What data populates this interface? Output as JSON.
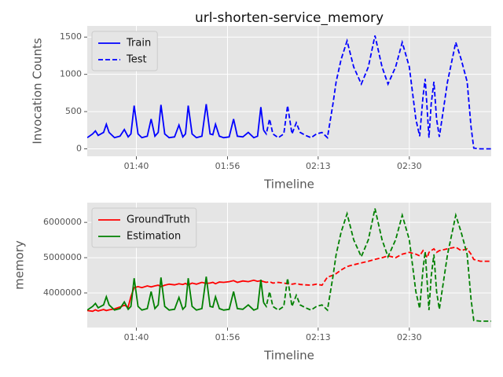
{
  "chart_data": [
    {
      "type": "line",
      "title": "url-shorten-service_memory",
      "xlabel": "Timeline",
      "ylabel": "Invocation Counts",
      "x": [
        91,
        92,
        92.5,
        93,
        94,
        94.5,
        95,
        96,
        97,
        97.8,
        98.5,
        99,
        99.6,
        100.3,
        101,
        102,
        102.7,
        103.4,
        104,
        104.5,
        105.2,
        106,
        107,
        107.8,
        108.5,
        109,
        109.5,
        110.2,
        111,
        112,
        112.8,
        113.5,
        114,
        114.5,
        115.2,
        116,
        117,
        117.8,
        118.5,
        119.5,
        120.5,
        121.5,
        122.2,
        122.8,
        123.3,
        123.8,
        124.4,
        125,
        126,
        127,
        127.7,
        128.5,
        129.3,
        130,
        131,
        132,
        133,
        134,
        135,
        136,
        136.6,
        137.5,
        138.6,
        139.8,
        141.2,
        142.5,
        143.7,
        145,
        146.1,
        147.5,
        148.7,
        150,
        151.2,
        151.9,
        152.5,
        152.9,
        153.3,
        153.6,
        154,
        154.5,
        155,
        155.5,
        157,
        158.5,
        159.5,
        160.6,
        161.3,
        161.8,
        163,
        165
      ],
      "xlim": [
        91,
        165
      ],
      "xticks": [
        {
          "value": 100,
          "label": "01:40"
        },
        {
          "value": 116.7,
          "label": "01:56"
        },
        {
          "value": 133.3,
          "label": "02:13"
        },
        {
          "value": 150,
          "label": "02:30"
        }
      ],
      "ylim": [
        -100,
        1650
      ],
      "yticks": [
        0,
        500,
        1000,
        1500
      ],
      "grid": true,
      "legend": "upper left",
      "series": [
        {
          "name": "Train",
          "color": "#0000ff",
          "style": "solid",
          "values": [
            150,
            200,
            240,
            180,
            220,
            330,
            220,
            150,
            170,
            260,
            160,
            200,
            580,
            200,
            150,
            170,
            400,
            170,
            220,
            590,
            200,
            150,
            160,
            320,
            160,
            200,
            580,
            200,
            150,
            170,
            600,
            200,
            190,
            330,
            170,
            150,
            160,
            400,
            170,
            160,
            220,
            150,
            170,
            560,
            250,
            null,
            null,
            null,
            null,
            null,
            null,
            null,
            null,
            null,
            null,
            null,
            null,
            null,
            null,
            null,
            null,
            null,
            null,
            null,
            null,
            null,
            null,
            null,
            null,
            null,
            null,
            null,
            null,
            null,
            null,
            null,
            null,
            null,
            null,
            null,
            null,
            null,
            null,
            null,
            null,
            null,
            null,
            null,
            null,
            null
          ]
        },
        {
          "name": "Test",
          "color": "#0000ff",
          "style": "dashed",
          "values": [
            null,
            null,
            null,
            null,
            null,
            null,
            null,
            null,
            null,
            null,
            null,
            null,
            null,
            null,
            null,
            null,
            null,
            null,
            null,
            null,
            null,
            null,
            null,
            null,
            null,
            null,
            null,
            null,
            null,
            null,
            null,
            null,
            null,
            null,
            null,
            null,
            null,
            null,
            null,
            null,
            null,
            null,
            null,
            null,
            250,
            200,
            400,
            200,
            150,
            200,
            580,
            200,
            350,
            220,
            180,
            150,
            200,
            220,
            150,
            600,
            900,
            1200,
            1450,
            1100,
            870,
            1100,
            1520,
            1100,
            870,
            1100,
            1430,
            1100,
            400,
            170,
            700,
            940,
            500,
            150,
            600,
            900,
            400,
            160,
            900,
            1430,
            1200,
            900,
            300,
            10,
            0,
            0
          ]
        }
      ]
    },
    {
      "type": "line",
      "xlabel": "Timeline",
      "ylabel": "memory",
      "x": [
        91,
        92,
        92.5,
        93,
        94,
        94.5,
        95,
        96,
        97,
        97.8,
        98.5,
        99,
        99.6,
        100.3,
        101,
        102,
        102.7,
        103.4,
        104,
        104.5,
        105.2,
        106,
        107,
        107.8,
        108.5,
        109,
        109.5,
        110.2,
        111,
        112,
        112.8,
        113.5,
        114,
        114.5,
        115.2,
        116,
        117,
        117.8,
        118.5,
        119.5,
        120.5,
        121.5,
        122.2,
        122.8,
        123.3,
        123.8,
        124.4,
        125,
        126,
        127,
        127.7,
        128.5,
        129.3,
        130,
        131,
        132,
        133,
        134,
        135,
        136,
        136.6,
        137.5,
        138.6,
        139.8,
        141.2,
        142.5,
        143.7,
        145,
        146.1,
        147.5,
        148.7,
        150,
        151.2,
        151.9,
        152.5,
        152.9,
        153.3,
        153.6,
        154,
        154.5,
        155,
        155.5,
        157,
        158.5,
        159.5,
        160.6,
        161.3,
        161.8,
        163,
        165
      ],
      "xlim": [
        91,
        165
      ],
      "xticks": [
        {
          "value": 100,
          "label": "01:40"
        },
        {
          "value": 116.7,
          "label": "01:56"
        },
        {
          "value": 133.3,
          "label": "02:13"
        },
        {
          "value": 150,
          "label": "02:30"
        }
      ],
      "ylim": [
        3020000,
        6560000
      ],
      "yticks": [
        4000000,
        5000000,
        6000000
      ],
      "grid": true,
      "legend": "upper left",
      "series": [
        {
          "name": "GroundTruth",
          "color": "#ff0000",
          "style": "solid",
          "values": [
            3500000,
            3480000,
            3520000,
            3490000,
            3530000,
            3500000,
            3520000,
            3550000,
            3600000,
            3650000,
            3600000,
            3900000,
            4150000,
            4180000,
            4150000,
            4200000,
            4170000,
            4200000,
            4220000,
            4180000,
            4220000,
            4250000,
            4230000,
            4260000,
            4240000,
            4270000,
            4230000,
            4280000,
            4250000,
            4300000,
            4270000,
            4280000,
            4300000,
            4260000,
            4310000,
            4300000,
            4320000,
            4350000,
            4300000,
            4340000,
            4320000,
            4360000,
            4330000,
            4350000,
            4320000,
            null,
            null,
            null,
            null,
            null,
            null,
            null,
            null,
            null,
            null,
            null,
            null,
            null,
            null,
            null,
            null,
            null,
            null,
            null,
            null,
            null,
            null,
            null,
            null,
            null,
            null,
            null,
            null,
            null,
            null,
            null,
            null,
            null,
            null,
            null,
            null,
            null,
            null,
            null,
            null,
            null,
            null,
            null,
            null,
            null
          ]
        },
        {
          "color": "#ff0000",
          "style": "dashed",
          "values": [
            null,
            null,
            null,
            null,
            null,
            null,
            null,
            null,
            null,
            null,
            null,
            null,
            null,
            null,
            null,
            null,
            null,
            null,
            null,
            null,
            null,
            null,
            null,
            null,
            null,
            null,
            null,
            null,
            null,
            null,
            null,
            null,
            null,
            null,
            null,
            null,
            null,
            null,
            null,
            null,
            null,
            null,
            null,
            null,
            4320000,
            4300000,
            4320000,
            4280000,
            4300000,
            4280000,
            4260000,
            4250000,
            4270000,
            4240000,
            4230000,
            4220000,
            4250000,
            4220000,
            4450000,
            4500000,
            4550000,
            4650000,
            4750000,
            4800000,
            4850000,
            4900000,
            4950000,
            5000000,
            5050000,
            5000000,
            5100000,
            5150000,
            5100000,
            5050000,
            5200000,
            5100000,
            5000000,
            5150000,
            5200000,
            5250000,
            5150000,
            5200000,
            5250000,
            5300000,
            5200000,
            5250000,
            5100000,
            4950000,
            4900000,
            4900000
          ]
        },
        {
          "name": "Estimation",
          "color": "#008000",
          "style": "solid",
          "values": [
            3515000,
            3620000,
            3704000,
            3578000,
            3662000,
            3893000,
            3662000,
            3515000,
            3557000,
            3746000,
            3536000,
            3620000,
            4418000,
            3620000,
            3515000,
            3557000,
            4040000,
            3557000,
            3662000,
            4439000,
            3620000,
            3515000,
            3536000,
            3872000,
            3536000,
            3620000,
            4418000,
            3620000,
            3515000,
            3557000,
            4460000,
            3620000,
            3599000,
            3893000,
            3557000,
            3515000,
            3536000,
            4040000,
            3557000,
            3536000,
            3662000,
            3515000,
            3557000,
            4376000,
            3725000,
            null,
            null,
            null,
            null,
            null,
            null,
            null,
            null,
            null,
            null,
            null,
            null,
            null,
            null,
            null,
            null,
            null,
            null,
            null,
            null,
            null,
            null,
            null,
            null,
            null,
            null,
            null,
            null,
            null,
            null,
            null,
            null,
            null,
            null,
            null,
            null,
            null,
            null,
            null,
            null,
            null,
            null,
            null,
            null,
            null
          ]
        },
        {
          "color": "#008000",
          "style": "dashed",
          "values": [
            null,
            null,
            null,
            null,
            null,
            null,
            null,
            null,
            null,
            null,
            null,
            null,
            null,
            null,
            null,
            null,
            null,
            null,
            null,
            null,
            null,
            null,
            null,
            null,
            null,
            null,
            null,
            null,
            null,
            null,
            null,
            null,
            null,
            null,
            null,
            null,
            null,
            null,
            null,
            null,
            null,
            null,
            null,
            null,
            3725000,
            3620000,
            4040000,
            3620000,
            3515000,
            3620000,
            4418000,
            3620000,
            3935000,
            3662000,
            3578000,
            3515000,
            3620000,
            3662000,
            3515000,
            4460000,
            5090000,
            5720000,
            6245000,
            5510000,
            5027000,
            5510000,
            6392000,
            5510000,
            5027000,
            5510000,
            6203000,
            5510000,
            4040000,
            3557000,
            4670000,
            5174000,
            4250000,
            3515000,
            4460000,
            5090000,
            4040000,
            3536000,
            5090000,
            6203000,
            5720000,
            5090000,
            3830000,
            3221000,
            3200000,
            3200000
          ]
        }
      ]
    }
  ]
}
